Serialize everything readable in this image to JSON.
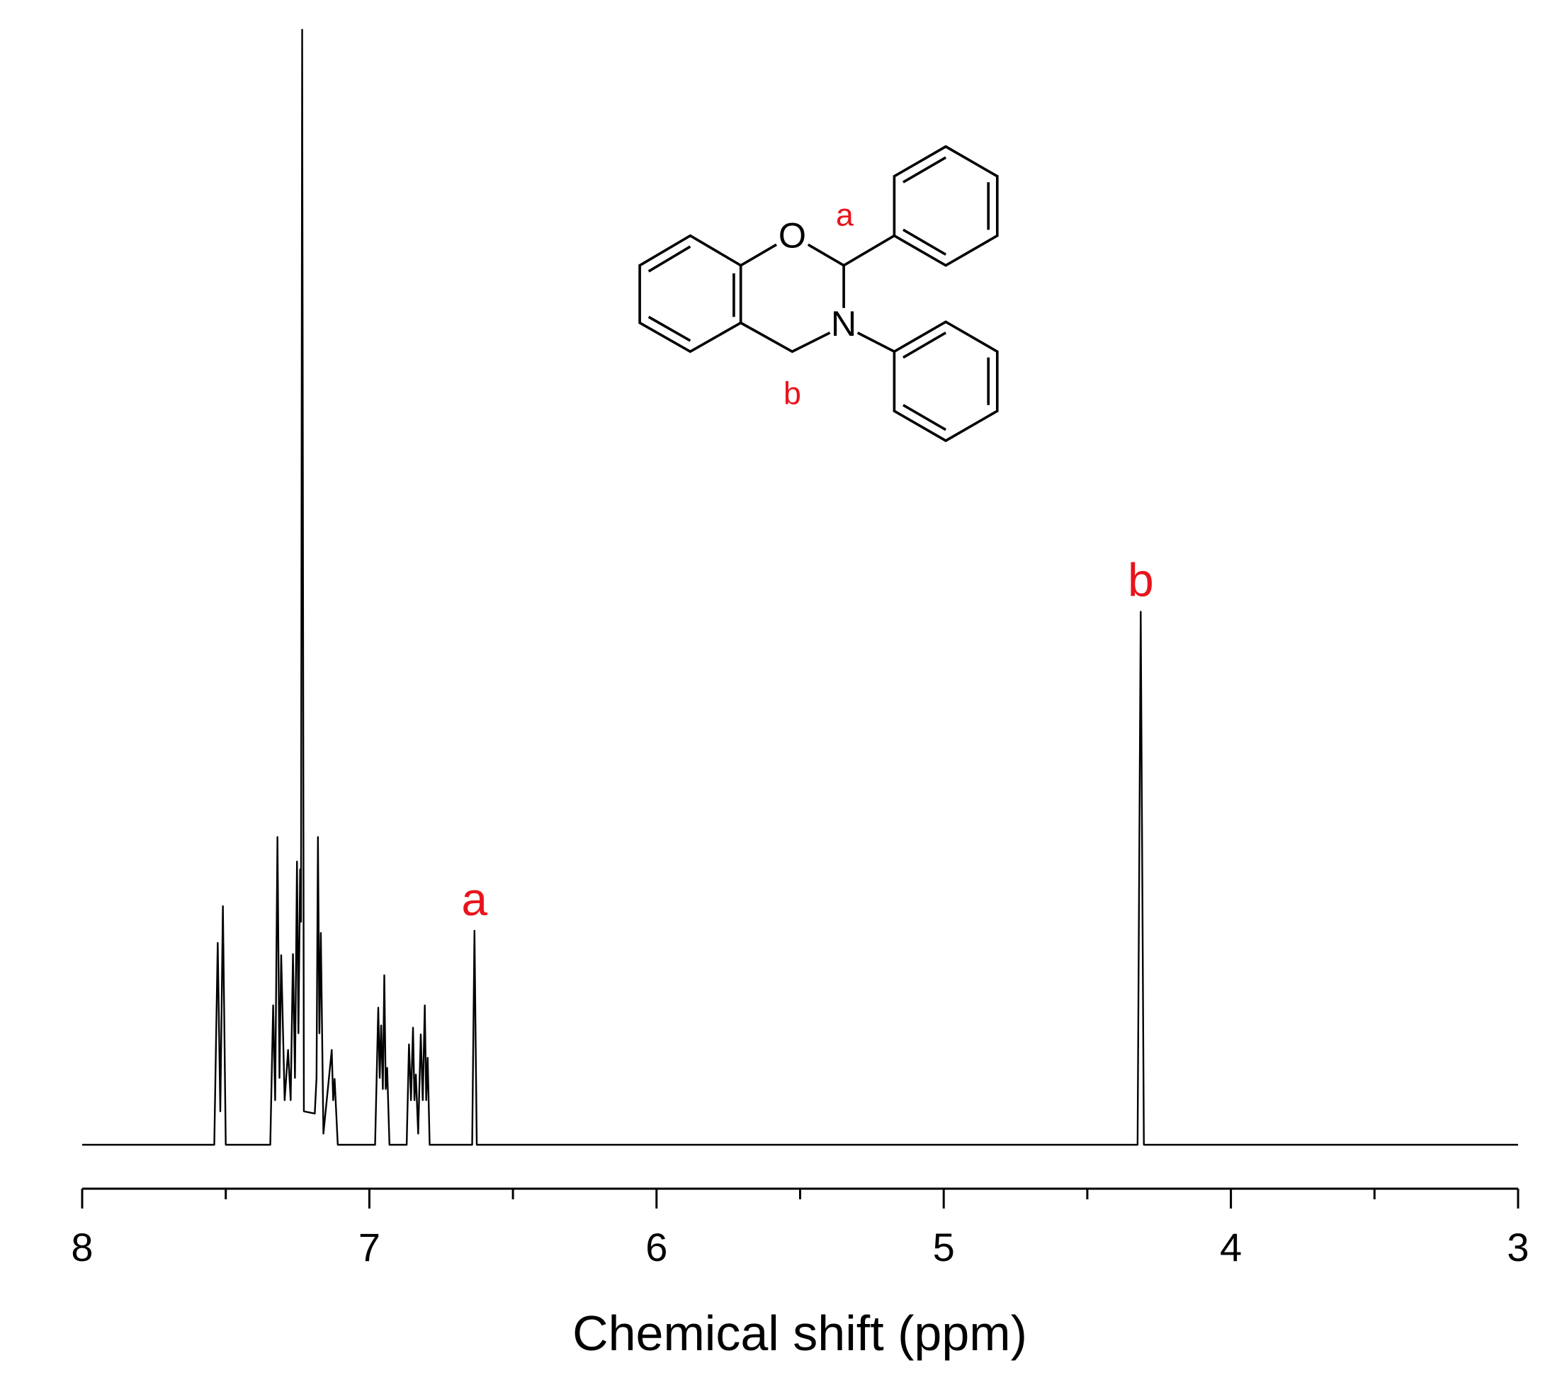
{
  "chart_data": {
    "type": "line",
    "xlabel": "Chemical shift (ppm)",
    "x": [
      8,
      7.54,
      7.528,
      7.519,
      7.51,
      7.5,
      7.345,
      7.335,
      7.328,
      7.32,
      7.313,
      7.307,
      7.295,
      7.283,
      7.274,
      7.266,
      7.259,
      7.252,
      7.247,
      7.241,
      7.238,
      7.234,
      7.228,
      7.19,
      7.184,
      7.179,
      7.174,
      7.169,
      7.16,
      7.131,
      7.126,
      7.121,
      7.11,
      6.98,
      6.969,
      6.964,
      6.959,
      6.953,
      6.948,
      6.943,
      6.938,
      6.93,
      6.87,
      6.862,
      6.855,
      6.848,
      6.843,
      6.838,
      6.83,
      6.821,
      6.814,
      6.807,
      6.802,
      6.797,
      6.79,
      6.642,
      6.634,
      6.626,
      4.325,
      4.314,
      4.303,
      3
    ],
    "values": [
      0,
      0,
      18.1,
      3,
      21.4,
      0,
      0,
      12.5,
      4,
      27.6,
      6,
      17,
      4,
      8.5,
      4,
      17.1,
      6,
      25.4,
      10,
      24.7,
      20,
      100,
      3,
      2.8,
      6,
      27.6,
      10,
      19,
      1,
      8.5,
      4,
      5.9,
      0,
      0,
      12.3,
      6,
      10.7,
      5,
      15.2,
      5,
      6.9,
      0,
      0,
      9,
      4,
      10.5,
      4,
      6.3,
      1,
      9.9,
      4,
      12.5,
      4,
      7.8,
      0,
      0,
      19.2,
      0,
      0,
      47.8,
      0,
      0
    ],
    "color": "#000000",
    "xlim": [
      8,
      3
    ],
    "xticks": [
      8,
      7,
      6,
      5,
      4,
      3
    ],
    "xminorticks": [
      7.5,
      6.5,
      5.5,
      4.5,
      3.5
    ],
    "ylim": [
      0,
      100
    ],
    "annotations": [
      {
        "text": "a",
        "x": 6.634,
        "y": 19.2,
        "color": "#e8141c"
      },
      {
        "text": "b",
        "x": 4.314,
        "y": 47.8,
        "color": "#e8141c"
      }
    ]
  },
  "structure": {
    "atoms": [
      "O",
      "N"
    ],
    "labels": [
      "a",
      "b"
    ],
    "label_color": "#e8141c"
  }
}
